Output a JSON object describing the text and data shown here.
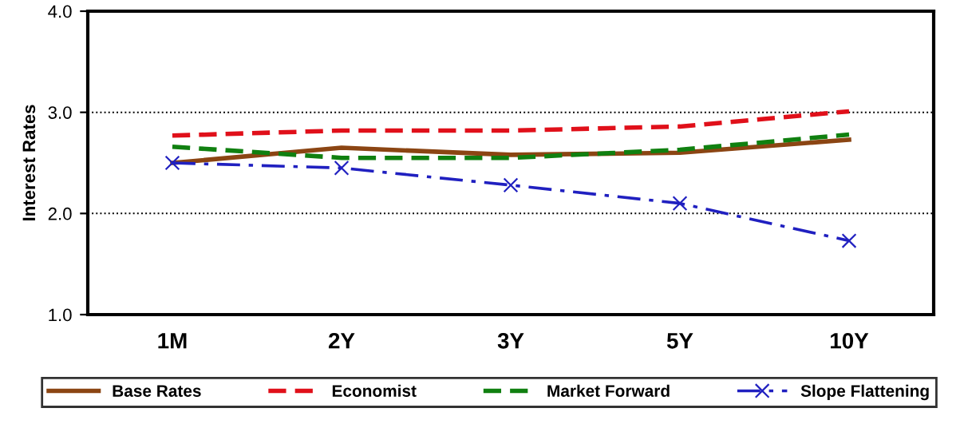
{
  "chart_data": {
    "type": "line",
    "ylabel": "Interest Rates",
    "categories": [
      "1M",
      "2Y",
      "3Y",
      "5Y",
      "10Y"
    ],
    "series": [
      {
        "name": "Base Rates",
        "color": "#8b4513",
        "line_style": "solid",
        "marker": "none",
        "values": [
          2.5,
          2.65,
          2.58,
          2.6,
          2.73
        ]
      },
      {
        "name": "Economist",
        "color": "#e0101a",
        "line_style": "dashed",
        "marker": "none",
        "values": [
          2.77,
          2.82,
          2.82,
          2.86,
          3.01
        ]
      },
      {
        "name": "Market Forward",
        "color": "#108010",
        "line_style": "dashed",
        "marker": "none",
        "values": [
          2.66,
          2.55,
          2.55,
          2.63,
          2.78
        ]
      },
      {
        "name": "Slope Flattening",
        "color": "#2020c0",
        "line_style": "dashdot",
        "marker": "cross",
        "values": [
          2.5,
          2.45,
          2.28,
          2.1,
          1.73
        ]
      }
    ],
    "ylim": [
      1.0,
      4.0
    ],
    "yticks": [
      {
        "value": 1,
        "label": "1.0"
      },
      {
        "value": 2,
        "label": "2.0"
      },
      {
        "value": 3,
        "label": "3.0"
      },
      {
        "value": 4,
        "label": "4.0"
      }
    ],
    "grid": "y",
    "legend": "bottom"
  }
}
